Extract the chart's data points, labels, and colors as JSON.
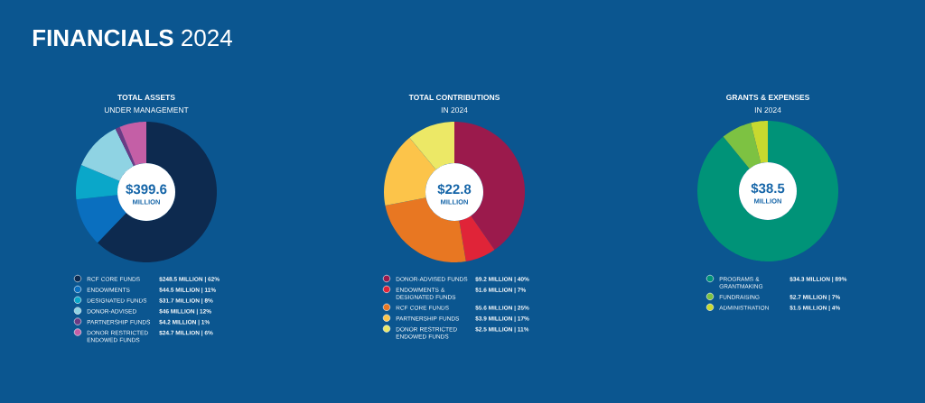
{
  "chart_data": [
    {
      "type": "donut",
      "title": "TOTAL ASSETS",
      "subtitle": "UNDER MANAGEMENT",
      "categories": [
        "RCF CORE FUNDS",
        "ENDOWMENTS",
        "DESIGNATED FUNDS",
        "DONOR-ADVISED",
        "PARTNERSHIP FUNDS",
        "DONOR RESTRICTED ENDOWED FUNDS"
      ],
      "values": [
        248.5,
        44.5,
        31.7,
        46,
        4.2,
        24.7
      ],
      "colors": [
        "#0d2a4f",
        "#0a6fbf",
        "#0aa7c9",
        "#8fd3e3",
        "#6b3b84",
        "#c45fa6"
      ],
      "value_labels": [
        "$248.5 MILLION | 62%",
        "$44.5 MILLION | 11%",
        "$31.7 MILLION | 8%",
        "$46 MILLION | 12%",
        "$4.2 MILLION | 1%",
        "$24.7 MILLION | 6%"
      ],
      "legend": "bottom",
      "annotations": [
        "$399.6",
        "MILLION",
        "**FINANCIALS** 2024"
      ]
    },
    {
      "type": "donut",
      "title": "TOTAL CONTRIBUTIONS",
      "subtitle": "IN 2024",
      "categories": [
        "DONOR-ADVISED FUNDS",
        "ENDOWMENTS & DESIGNATED FUNDS",
        "RCF CORE FUNDS",
        "PARTNERSHIP FUNDS",
        "DONOR RESTRICTED ENDOWED FUNDS"
      ],
      "values": [
        9.2,
        1.6,
        5.6,
        3.9,
        2.5
      ],
      "colors": [
        "#9b1a4c",
        "#e02438",
        "#e87722",
        "#fcc44a",
        "#ece866"
      ],
      "value_labels": [
        "$9.2 MILLION | 40%",
        "$1.6 MILLION | 7%",
        "$5.6 MILLION | 25%",
        "$3.9 MILLION | 17%",
        "$2.5 MILLION | 11%"
      ],
      "legend": "bottom",
      "annotations": [
        "$22.8",
        "MILLION"
      ]
    },
    {
      "type": "donut",
      "title": "GRANTS & EXPENSES",
      "subtitle": "IN 2024",
      "categories": [
        "PROGRAMS & GRANTMAKING",
        "FUNDRAISING",
        "ADMINISTRATION"
      ],
      "values": [
        34.3,
        2.7,
        1.5
      ],
      "colors": [
        "#009378",
        "#7dc242",
        "#c8d92f"
      ],
      "value_labels": [
        "$34.3 MILLION | 89%",
        "$2.7 MILLION | 7%",
        "$1.5 MILLION | 4%"
      ],
      "legend": "bottom",
      "annotations": [
        "$38.5",
        "MILLION"
      ]
    }
  ]
}
